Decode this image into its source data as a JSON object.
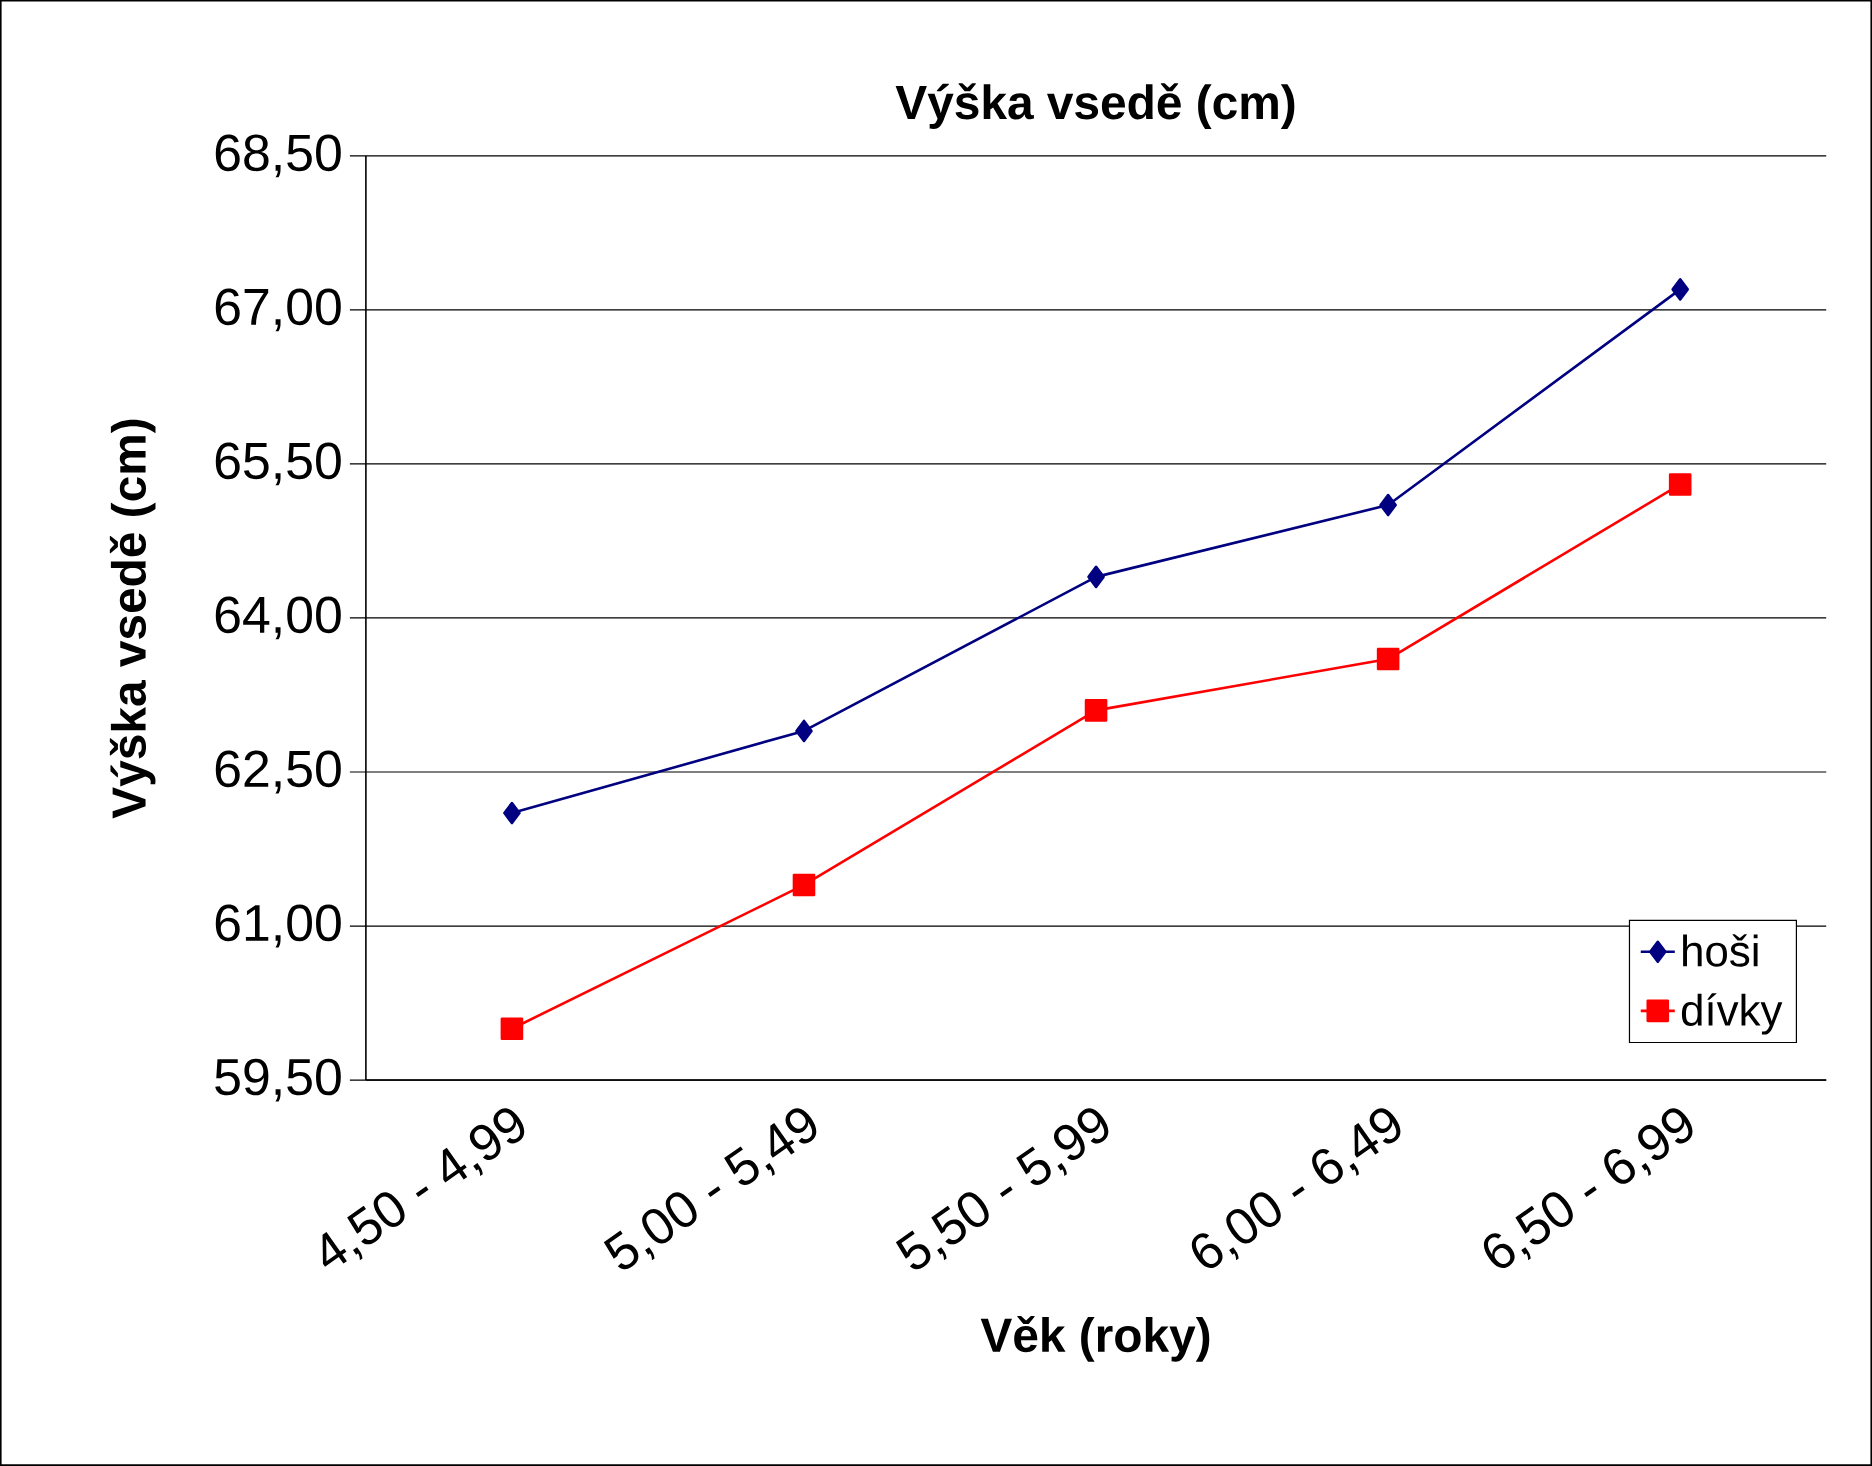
{
  "chart_data": {
    "type": "line",
    "title": "Výška vsedě (cm)",
    "xlabel": "Věk (roky)",
    "ylabel": "Výška vsedě (cm)",
    "categories": [
      "4,50 - 4,99",
      "5,00 - 5,49",
      "5,50 - 5,99",
      "6,00 - 6,49",
      "6,50 - 6,99"
    ],
    "series": [
      {
        "name": "hoši",
        "color": "#000080",
        "marker": "diamond",
        "values": [
          62.1,
          62.9,
          64.4,
          65.1,
          67.2
        ]
      },
      {
        "name": "dívky",
        "color": "#ff0000",
        "marker": "square",
        "values": [
          60.0,
          61.4,
          63.1,
          63.6,
          65.3
        ]
      }
    ],
    "ylim": [
      59.5,
      68.5
    ],
    "yticks": [
      {
        "value": 59.5,
        "label": "59,50"
      },
      {
        "value": 61,
        "label": "61,00"
      },
      {
        "value": 62.5,
        "label": "62,50"
      },
      {
        "value": 64,
        "label": "64,00"
      },
      {
        "value": 65.5,
        "label": "65,50"
      },
      {
        "value": 67,
        "label": "67,00"
      },
      {
        "value": 68.5,
        "label": "68,50"
      }
    ],
    "grid": "y",
    "legend": "bottom right",
    "line_style": "solid"
  }
}
